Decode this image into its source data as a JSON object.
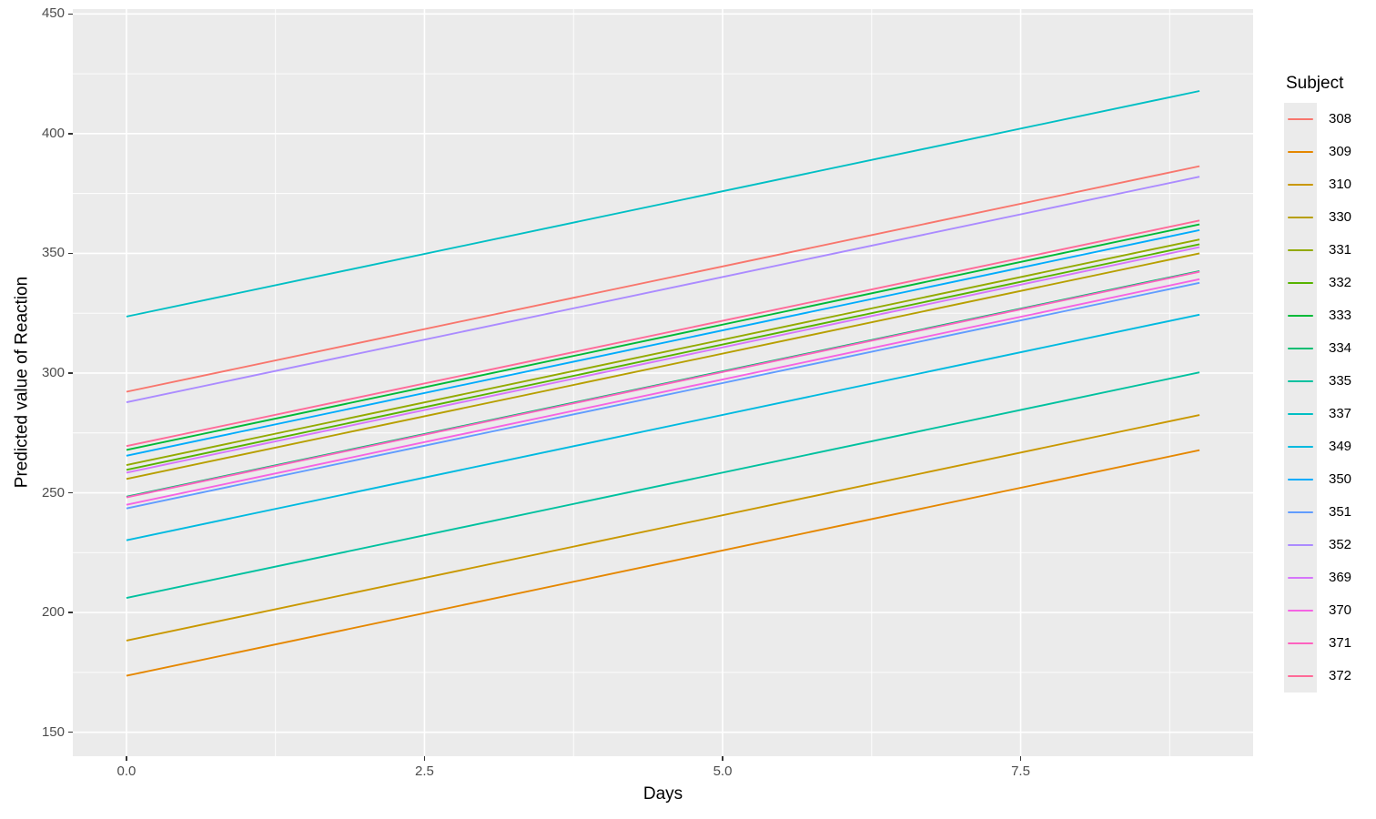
{
  "chart_data": {
    "type": "line",
    "title": "",
    "xlabel": "Days",
    "ylabel": "Predicted value of Reaction",
    "legend_title": "Subject",
    "legend_position": "right",
    "grid": true,
    "panel_background": "#EBEBEB",
    "grid_color": "#FFFFFF",
    "tick_color": "#333333",
    "tick_label_color": "#4D4D4D",
    "x": [
      0,
      9
    ],
    "xlim": [
      -0.45,
      9.45
    ],
    "ylim": [
      140,
      452
    ],
    "x_major_ticks": [
      0.0,
      2.5,
      5.0,
      7.5
    ],
    "x_tick_labels": [
      "0.0",
      "2.5",
      "5.0",
      "7.5"
    ],
    "x_minor_ticks": [
      1.25,
      3.75,
      6.25,
      8.75
    ],
    "y_major_ticks": [
      150,
      200,
      250,
      300,
      350,
      400,
      450
    ],
    "y_tick_labels": [
      "150",
      "200",
      "250",
      "300",
      "350",
      "400",
      "450"
    ],
    "y_minor_ticks": [
      175,
      225,
      275,
      325,
      375,
      425
    ],
    "series": [
      {
        "name": "308",
        "color": "#F8766D",
        "values": [
          292.2,
          386.4
        ]
      },
      {
        "name": "309",
        "color": "#E58700",
        "values": [
          173.6,
          267.8
        ]
      },
      {
        "name": "310",
        "color": "#C99800",
        "values": [
          188.3,
          282.5
        ]
      },
      {
        "name": "330",
        "color": "#B79F00",
        "values": [
          255.8,
          350.0
        ]
      },
      {
        "name": "331",
        "color": "#93AA00",
        "values": [
          261.6,
          355.8
        ]
      },
      {
        "name": "332",
        "color": "#57B300",
        "values": [
          259.6,
          353.8
        ]
      },
      {
        "name": "333",
        "color": "#00BA38",
        "values": [
          267.9,
          362.1
        ]
      },
      {
        "name": "334",
        "color": "#00BE72",
        "values": [
          248.4,
          342.6
        ]
      },
      {
        "name": "335",
        "color": "#00C19F",
        "values": [
          206.1,
          300.3
        ]
      },
      {
        "name": "337",
        "color": "#00BFC4",
        "values": [
          323.6,
          417.8
        ]
      },
      {
        "name": "349",
        "color": "#00BAE0",
        "values": [
          230.2,
          324.4
        ]
      },
      {
        "name": "350",
        "color": "#00ACFC",
        "values": [
          265.5,
          359.7
        ]
      },
      {
        "name": "351",
        "color": "#619CFF",
        "values": [
          243.5,
          337.7
        ]
      },
      {
        "name": "352",
        "color": "#AB8BFF",
        "values": [
          287.8,
          382.0
        ]
      },
      {
        "name": "369",
        "color": "#D675FB",
        "values": [
          258.4,
          352.6
        ]
      },
      {
        "name": "370",
        "color": "#F564E3",
        "values": [
          245.0,
          339.2
        ]
      },
      {
        "name": "371",
        "color": "#FF62BF",
        "values": [
          248.1,
          342.3
        ]
      },
      {
        "name": "372",
        "color": "#FF6A98",
        "values": [
          269.5,
          363.7
        ]
      }
    ]
  }
}
